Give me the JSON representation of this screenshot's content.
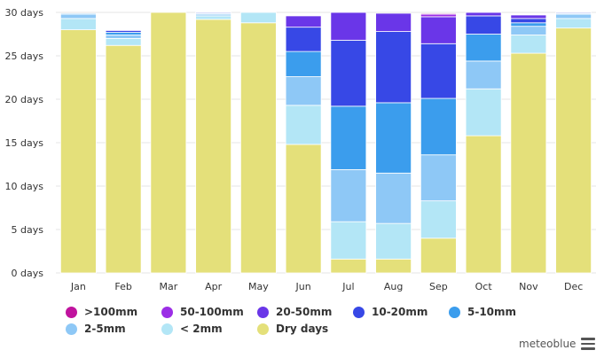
{
  "chart_data": {
    "type": "bar",
    "stacked": true,
    "categories": [
      "Jan",
      "Feb",
      "Mar",
      "Apr",
      "May",
      "Jun",
      "Jul",
      "Aug",
      "Sep",
      "Oct",
      "Nov",
      "Dec"
    ],
    "ylim": [
      0,
      30
    ],
    "yticks": [
      {
        "value": 0,
        "label": "0 days"
      },
      {
        "value": 5,
        "label": "5 days"
      },
      {
        "value": 10,
        "label": "10 days"
      },
      {
        "value": 15,
        "label": "15 days"
      },
      {
        "value": 20,
        "label": "20 days"
      },
      {
        "value": 25,
        "label": "25 days"
      },
      {
        "value": 30,
        "label": "30 days"
      }
    ],
    "grid": true,
    "legend_position": "bottom",
    "series": [
      {
        "name": "Dry days",
        "color": "#e4e07a",
        "values": [
          28.0,
          26.2,
          30.0,
          29.2,
          28.8,
          14.8,
          1.6,
          1.6,
          4.0,
          15.8,
          25.3,
          28.2
        ]
      },
      {
        "name": "< 2mm",
        "color": "#b3e6f6",
        "values": [
          1.3,
          0.8,
          0,
          0.4,
          1.2,
          4.5,
          4.3,
          4.1,
          4.3,
          5.4,
          2.1,
          1.1
        ]
      },
      {
        "name": "2-5mm",
        "color": "#8ec8f6",
        "values": [
          0.5,
          0.4,
          0,
          0.2,
          0,
          3.3,
          6.0,
          5.8,
          5.3,
          3.2,
          1.0,
          0.5
        ]
      },
      {
        "name": "5-10mm",
        "color": "#3b9ded",
        "values": [
          0.1,
          0.3,
          0,
          0.1,
          0,
          2.9,
          7.3,
          8.1,
          6.5,
          3.1,
          0.4,
          0.1
        ]
      },
      {
        "name": "10-20mm",
        "color": "#3748e6",
        "values": [
          0,
          0.2,
          0,
          0.1,
          0,
          2.8,
          7.6,
          8.2,
          6.3,
          2.1,
          0.5,
          0.1
        ]
      },
      {
        "name": "20-50mm",
        "color": "#6a36e8",
        "values": [
          0,
          0.1,
          0,
          0,
          0,
          1.3,
          3.2,
          2.1,
          3.1,
          0.4,
          0.4,
          0
        ]
      },
      {
        "name": "50-100mm",
        "color": "#9c2ee6",
        "values": [
          0,
          0,
          0,
          0,
          0,
          0,
          0,
          0,
          0.3,
          0,
          0,
          0
        ]
      },
      {
        "name": ">100mm",
        "color": "#c0139e",
        "values": [
          0,
          0,
          0,
          0,
          0,
          0,
          0,
          0,
          0.1,
          0,
          0,
          0
        ]
      }
    ]
  },
  "legend": [
    {
      "label": ">100mm",
      "color": "#c0139e"
    },
    {
      "label": "50-100mm",
      "color": "#9c2ee6"
    },
    {
      "label": "20-50mm",
      "color": "#6a36e8"
    },
    {
      "label": "10-20mm",
      "color": "#3748e6"
    },
    {
      "label": "5-10mm",
      "color": "#3b9ded"
    },
    {
      "label": "2-5mm",
      "color": "#8ec8f6"
    },
    {
      "label": "< 2mm",
      "color": "#b3e6f6"
    },
    {
      "label": "Dry days",
      "color": "#e4e07a"
    }
  ],
  "credit": "meteoblue",
  "menu_icon": "hamburger-menu-icon"
}
